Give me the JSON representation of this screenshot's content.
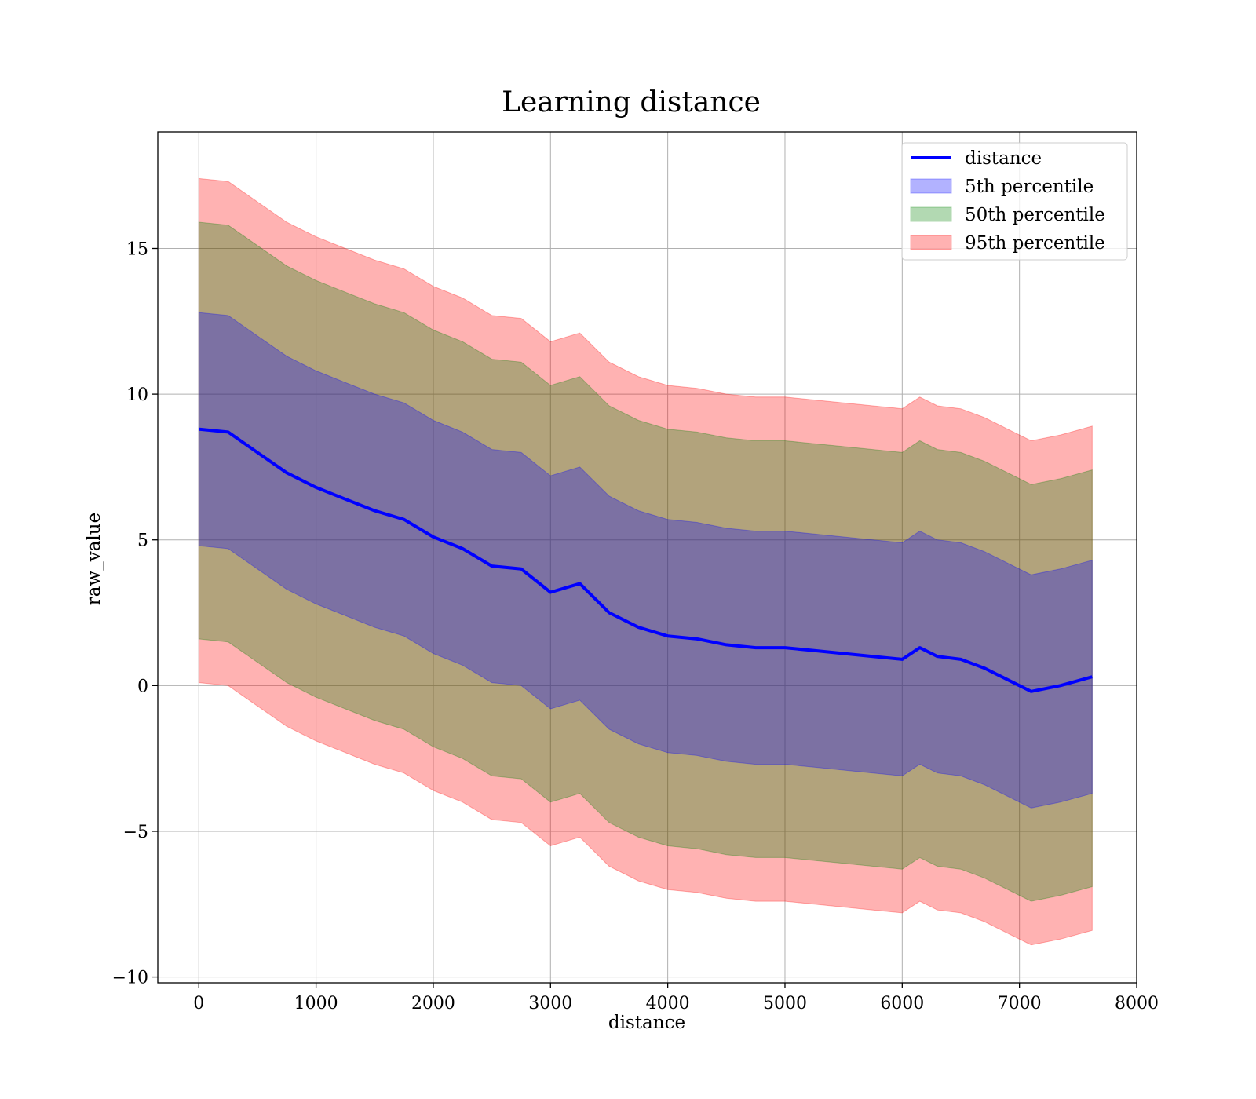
{
  "chart_data": {
    "type": "area",
    "title": "Learning distance",
    "xlabel": "distance",
    "ylabel": "raw_value",
    "xlim": [
      -350,
      8000
    ],
    "ylim": [
      -10.2,
      19
    ],
    "x_ticks": [
      0,
      1000,
      2000,
      3000,
      4000,
      5000,
      6000,
      7000,
      8000
    ],
    "y_ticks": [
      -10,
      -5,
      0,
      5,
      10,
      15
    ],
    "x_tick_labels": [
      "0",
      "1000",
      "2000",
      "3000",
      "4000",
      "5000",
      "6000",
      "7000",
      "8000"
    ],
    "y_tick_labels": [
      "−10",
      "−5",
      "0",
      "5",
      "10",
      "15"
    ],
    "grid": true,
    "legend_position": "top-right",
    "legend": [
      {
        "label": "distance",
        "kind": "line",
        "color": "#0000ff"
      },
      {
        "label": "5th percentile",
        "kind": "patch",
        "color": "#0000ff"
      },
      {
        "label": "50th percentile",
        "kind": "patch",
        "color": "#008000"
      },
      {
        "label": "95th percentile",
        "kind": "patch",
        "color": "#ff0000"
      }
    ],
    "x": [
      0,
      250,
      500,
      750,
      1000,
      1250,
      1500,
      1750,
      2000,
      2250,
      2500,
      2750,
      3000,
      3250,
      3500,
      3750,
      4000,
      4250,
      4500,
      4750,
      5000,
      5250,
      5500,
      5750,
      6000,
      6150,
      6300,
      6500,
      6700,
      6900,
      7100,
      7350,
      7620
    ],
    "series": [
      {
        "name": "distance",
        "kind": "line",
        "color": "#0000ff",
        "values": [
          8.8,
          8.7,
          8.0,
          7.3,
          6.8,
          6.4,
          6.0,
          5.7,
          5.1,
          4.7,
          4.1,
          4.0,
          3.2,
          3.5,
          2.5,
          2.0,
          1.7,
          1.6,
          1.4,
          1.3,
          1.3,
          1.2,
          1.1,
          1.0,
          0.9,
          1.3,
          1.0,
          0.9,
          0.6,
          0.2,
          -0.2,
          0.0,
          0.3
        ]
      },
      {
        "name": "5th percentile",
        "kind": "band",
        "color": "#0000ff",
        "upper": [
          12.8,
          12.7,
          12.0,
          11.3,
          10.8,
          10.4,
          10.0,
          9.7,
          9.1,
          8.7,
          8.1,
          8.0,
          7.2,
          7.5,
          6.5,
          6.0,
          5.7,
          5.6,
          5.4,
          5.3,
          5.3,
          5.2,
          5.1,
          5.0,
          4.9,
          5.3,
          5.0,
          4.9,
          4.6,
          4.2,
          3.8,
          4.0,
          4.3
        ],
        "lower": [
          4.8,
          4.7,
          4.0,
          3.3,
          2.8,
          2.4,
          2.0,
          1.7,
          1.1,
          0.7,
          0.1,
          0.0,
          -0.8,
          -0.5,
          -1.5,
          -2.0,
          -2.3,
          -2.4,
          -2.6,
          -2.7,
          -2.7,
          -2.8,
          -2.9,
          -3.0,
          -3.1,
          -2.7,
          -3.0,
          -3.1,
          -3.4,
          -3.8,
          -4.2,
          -4.0,
          -3.7
        ]
      },
      {
        "name": "50th percentile",
        "kind": "band",
        "color": "#008000",
        "upper": [
          15.9,
          15.8,
          15.1,
          14.4,
          13.9,
          13.5,
          13.1,
          12.8,
          12.2,
          11.8,
          11.2,
          11.1,
          10.3,
          10.6,
          9.6,
          9.1,
          8.8,
          8.7,
          8.5,
          8.4,
          8.4,
          8.3,
          8.2,
          8.1,
          8.0,
          8.4,
          8.1,
          8.0,
          7.7,
          7.3,
          6.9,
          7.1,
          7.4
        ],
        "lower": [
          1.6,
          1.5,
          0.8,
          0.1,
          -0.4,
          -0.8,
          -1.2,
          -1.5,
          -2.1,
          -2.5,
          -3.1,
          -3.2,
          -4.0,
          -3.7,
          -4.7,
          -5.2,
          -5.5,
          -5.6,
          -5.8,
          -5.9,
          -5.9,
          -6.0,
          -6.1,
          -6.2,
          -6.3,
          -5.9,
          -6.2,
          -6.3,
          -6.6,
          -7.0,
          -7.4,
          -7.2,
          -6.9
        ]
      },
      {
        "name": "95th percentile",
        "kind": "band",
        "color": "#ff0000",
        "upper": [
          17.4,
          17.3,
          16.6,
          15.9,
          15.4,
          15.0,
          14.6,
          14.3,
          13.7,
          13.3,
          12.7,
          12.6,
          11.8,
          12.1,
          11.1,
          10.6,
          10.3,
          10.2,
          10.0,
          9.9,
          9.9,
          9.8,
          9.7,
          9.6,
          9.5,
          9.9,
          9.6,
          9.5,
          9.2,
          8.8,
          8.4,
          8.6,
          8.9
        ],
        "lower": [
          0.1,
          0.0,
          -0.7,
          -1.4,
          -1.9,
          -2.3,
          -2.7,
          -3.0,
          -3.6,
          -4.0,
          -4.6,
          -4.7,
          -5.5,
          -5.2,
          -6.2,
          -6.7,
          -7.0,
          -7.1,
          -7.3,
          -7.4,
          -7.4,
          -7.5,
          -7.6,
          -7.7,
          -7.8,
          -7.4,
          -7.7,
          -7.8,
          -8.1,
          -8.5,
          -8.9,
          -8.7,
          -8.4
        ]
      }
    ]
  }
}
